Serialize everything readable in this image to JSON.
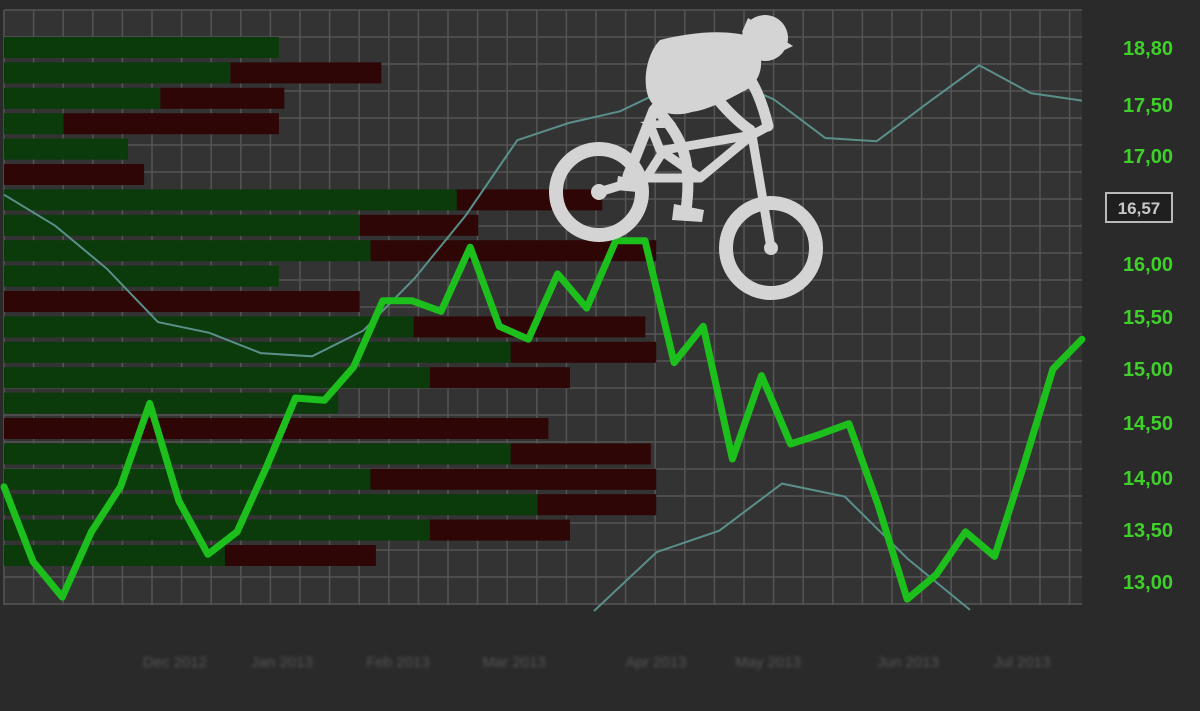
{
  "chart_data": {
    "type": "line",
    "y_ticks": [
      "18,80",
      "17,50",
      "17,00",
      "16,00",
      "15,50",
      "15,00",
      "14,50",
      "14,00",
      "13,50",
      "13,00"
    ],
    "x_ticks": [
      "Dec 2012",
      "Jan 2013",
      "Feb 2013",
      "Mar 2013",
      "Apr 2013",
      "May 2013",
      "Jun 2013",
      "Jul 2013"
    ],
    "current_value_label": "16,57",
    "price_series": [
      13.88,
      13.18,
      12.85,
      13.46,
      13.88,
      14.66,
      13.75,
      13.25,
      13.46,
      14.06,
      14.71,
      14.69,
      15.0,
      15.62,
      15.62,
      15.52,
      16.12,
      15.38,
      15.26,
      15.87,
      15.55,
      16.18,
      16.18,
      15.04,
      15.38,
      14.14,
      14.92,
      14.28,
      14.37,
      14.47,
      13.71,
      12.83,
      13.06,
      13.46,
      13.23,
      14.08,
      14.98,
      15.26
    ],
    "price_series_2": [
      16.61,
      16.32,
      15.92,
      15.42,
      15.32,
      15.13,
      15.1,
      15.34,
      15.83,
      16.42,
      17.12,
      17.28,
      17.39,
      17.62,
      17.71,
      17.5,
      17.14,
      17.11,
      17.47,
      17.82,
      17.56,
      17.49,
      12.72,
      13.27,
      13.47,
      13.91,
      13.79,
      13.21,
      12.73
    ],
    "volume_profile": {
      "green": [
        0.255,
        0.21,
        0.145,
        0.055,
        0.115,
        0.0,
        0.42,
        0.33,
        0.34,
        0.255,
        0.0,
        0.38,
        0.47,
        0.395,
        0.31,
        0.0,
        0.47,
        0.34,
        0.495,
        0.395,
        0.205
      ],
      "red": [
        0.0,
        0.14,
        0.115,
        0.2,
        0.0,
        0.13,
        0.135,
        0.11,
        0.265,
        0.0,
        0.33,
        0.215,
        0.135,
        0.13,
        0.0,
        0.505,
        0.13,
        0.265,
        0.11,
        0.13,
        0.14
      ]
    },
    "colors": {
      "background": "#2a2a2a",
      "grid": "#555555",
      "price_line": "#1dbf1d",
      "secondary_line": "#5a8f8a",
      "volume_green": "#0b3a0b",
      "volume_red": "#2e0606",
      "tick_text": "#3fd12a",
      "silhouette": "#d4d4d4"
    },
    "grid": true,
    "decoration": "mountain-bike-rider-silhouette"
  }
}
